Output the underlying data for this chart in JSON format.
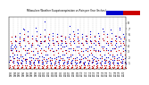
{
  "title": "Milwaukee Weather Evapotranspiration",
  "title2": "vs Rain per Year",
  "title3": "(Inches)",
  "background_color": "#ffffff",
  "grid_color": "#888888",
  "rain_color": "#0000cc",
  "et_color": "#cc0000",
  "ylim": [
    0,
    9
  ],
  "ytick_vals": [
    1,
    2,
    3,
    4,
    5,
    6,
    7,
    8
  ],
  "ytick_labels": [
    "1",
    "2",
    "3",
    "4",
    "5",
    "6",
    "7",
    "8"
  ],
  "num_years": 28,
  "start_year": 1993,
  "months_per_year": 12,
  "rain_monthly": [
    1.2,
    1.5,
    2.1,
    3.2,
    3.5,
    3.8,
    3.2,
    4.1,
    3.5,
    2.8,
    2.2,
    1.8,
    1.0,
    1.3,
    2.5,
    3.8,
    4.2,
    5.5,
    4.8,
    3.9,
    3.2,
    2.5,
    1.9,
    1.2,
    0.9,
    1.1,
    1.8,
    3.0,
    4.5,
    6.2,
    5.5,
    4.8,
    3.8,
    2.2,
    1.5,
    0.8,
    1.1,
    1.4,
    2.2,
    3.5,
    5.0,
    7.0,
    6.8,
    5.2,
    4.0,
    2.5,
    1.6,
    1.0,
    1.3,
    1.6,
    2.8,
    3.2,
    4.8,
    6.5,
    5.8,
    4.5,
    3.5,
    2.0,
    1.4,
    0.9,
    0.8,
    1.2,
    2.0,
    3.8,
    4.2,
    5.8,
    5.2,
    4.2,
    3.0,
    1.8,
    1.2,
    0.7,
    1.0,
    1.5,
    2.5,
    3.5,
    5.2,
    7.2,
    6.5,
    5.0,
    4.2,
    2.8,
    1.8,
    1.1,
    1.2,
    1.4,
    2.2,
    4.0,
    4.5,
    6.0,
    5.5,
    4.8,
    3.5,
    2.2,
    1.5,
    0.9,
    0.9,
    1.2,
    1.9,
    3.2,
    4.8,
    6.8,
    8.2,
    5.5,
    3.8,
    2.5,
    1.6,
    1.0,
    1.1,
    1.3,
    2.5,
    3.8,
    4.5,
    5.5,
    5.0,
    4.2,
    3.2,
    2.0,
    1.3,
    0.8,
    0.8,
    1.0,
    1.8,
    3.5,
    5.0,
    6.2,
    5.8,
    4.5,
    3.0,
    1.8,
    1.1,
    0.7,
    1.0,
    1.4,
    2.0,
    3.2,
    4.8,
    6.0,
    5.5,
    4.2,
    3.5,
    2.2,
    1.5,
    0.9,
    1.2,
    1.5,
    2.2,
    3.5,
    4.2,
    5.8,
    5.0,
    4.5,
    3.8,
    2.5,
    1.8,
    1.1,
    0.9,
    1.2,
    2.5,
    3.8,
    4.5,
    5.5,
    5.2,
    4.0,
    3.2,
    2.0,
    1.2,
    0.8,
    1.0,
    1.3,
    2.0,
    3.5,
    5.5,
    7.5,
    6.0,
    4.8,
    3.5,
    2.2,
    1.4,
    0.9,
    1.1,
    1.5,
    2.5,
    3.2,
    4.8,
    6.5,
    5.8,
    4.5,
    3.2,
    1.8,
    1.2,
    0.8,
    0.8,
    1.0,
    2.0,
    3.8,
    5.2,
    6.8,
    6.2,
    5.0,
    3.8,
    2.5,
    1.6,
    1.0,
    1.2,
    1.4,
    2.2,
    3.5,
    4.5,
    6.0,
    5.5,
    4.2,
    3.0,
    1.8,
    1.1,
    0.7,
    0.9,
    1.2,
    2.0,
    3.2,
    4.8,
    5.8,
    5.2,
    4.5,
    3.5,
    2.2,
    1.5,
    0.9,
    1.0,
    1.3,
    2.5,
    3.8,
    5.0,
    6.5,
    6.0,
    4.8,
    3.8,
    2.5,
    1.8,
    1.1,
    1.2,
    1.5,
    2.2,
    3.5,
    4.5,
    5.5,
    5.0,
    4.2,
    3.2,
    2.0,
    1.3,
    0.8,
    0.8,
    1.1,
    1.8,
    3.2,
    4.8,
    6.2,
    5.8,
    4.5,
    3.0,
    1.8,
    1.1,
    0.7,
    1.0,
    1.4,
    2.2,
    3.8,
    5.2,
    7.0,
    6.5,
    5.0,
    3.8,
    2.5,
    1.6,
    1.0,
    1.1,
    1.3,
    2.0,
    3.5,
    4.5,
    6.0,
    5.5,
    4.2,
    3.2,
    2.0,
    1.4,
    0.9,
    0.9,
    1.2,
    2.5,
    3.2,
    4.8,
    6.8,
    6.2,
    4.8,
    3.5,
    2.2,
    1.5,
    0.9,
    1.2,
    1.5,
    2.2,
    3.5,
    4.2,
    5.8,
    5.2,
    4.5,
    3.8,
    2.5,
    1.8,
    1.1,
    0.8,
    1.0,
    2.0,
    3.8,
    5.5,
    7.2,
    6.8,
    5.2,
    4.0,
    2.5,
    1.6,
    1.0,
    1.0,
    1.3,
    2.2,
    3.5,
    4.8,
    6.0,
    5.5,
    4.2,
    3.2,
    1.8,
    1.2,
    0.8
  ],
  "et_monthly": [
    0.1,
    0.2,
    0.5,
    1.5,
    3.2,
    4.8,
    5.5,
    4.5,
    2.8,
    1.2,
    0.4,
    0.1,
    0.1,
    0.2,
    0.6,
    1.8,
    3.5,
    5.0,
    5.8,
    4.8,
    3.0,
    1.5,
    0.5,
    0.1,
    0.1,
    0.2,
    0.5,
    1.5,
    3.0,
    4.5,
    5.2,
    4.2,
    2.5,
    1.0,
    0.3,
    0.1,
    0.1,
    0.2,
    0.6,
    1.8,
    3.5,
    5.2,
    6.0,
    5.0,
    3.2,
    1.5,
    0.5,
    0.1,
    0.1,
    0.2,
    0.5,
    1.6,
    3.2,
    4.8,
    5.5,
    4.5,
    2.8,
    1.2,
    0.4,
    0.1,
    0.1,
    0.2,
    0.5,
    1.5,
    3.0,
    4.5,
    5.2,
    4.2,
    2.5,
    1.0,
    0.3,
    0.1,
    0.1,
    0.2,
    0.6,
    1.8,
    3.5,
    5.0,
    5.8,
    4.8,
    3.0,
    1.5,
    0.5,
    0.1,
    0.1,
    0.2,
    0.5,
    1.5,
    3.2,
    4.8,
    5.5,
    4.5,
    2.8,
    1.2,
    0.4,
    0.1,
    0.1,
    0.2,
    0.5,
    1.6,
    3.2,
    5.0,
    5.8,
    4.8,
    3.0,
    1.3,
    0.4,
    0.1,
    0.1,
    0.2,
    0.6,
    1.8,
    3.5,
    5.2,
    6.0,
    5.0,
    3.2,
    1.5,
    0.5,
    0.1,
    0.1,
    0.2,
    0.5,
    1.5,
    3.0,
    4.5,
    5.2,
    4.2,
    2.5,
    1.0,
    0.3,
    0.1,
    0.1,
    0.2,
    0.5,
    1.6,
    3.2,
    4.8,
    5.5,
    4.5,
    2.8,
    1.2,
    0.4,
    0.1,
    0.1,
    0.2,
    0.6,
    1.8,
    3.5,
    5.0,
    5.8,
    4.8,
    3.0,
    1.5,
    0.5,
    0.1,
    0.1,
    0.2,
    0.5,
    1.5,
    3.2,
    4.8,
    5.5,
    4.5,
    2.8,
    1.2,
    0.4,
    0.1,
    0.1,
    0.2,
    0.5,
    1.6,
    3.0,
    4.5,
    5.2,
    4.2,
    2.5,
    1.0,
    0.3,
    0.1,
    0.1,
    0.2,
    0.6,
    1.8,
    3.5,
    5.2,
    6.0,
    5.0,
    3.2,
    1.5,
    0.5,
    0.1,
    0.1,
    0.2,
    0.5,
    1.5,
    3.2,
    4.8,
    5.5,
    4.5,
    2.8,
    1.2,
    0.4,
    0.1,
    0.1,
    0.2,
    0.5,
    1.6,
    3.0,
    4.5,
    5.2,
    4.2,
    2.5,
    1.0,
    0.3,
    0.1,
    0.1,
    0.2,
    0.6,
    1.8,
    3.5,
    5.0,
    5.8,
    4.8,
    3.0,
    1.5,
    0.5,
    0.1,
    0.1,
    0.2,
    0.5,
    1.5,
    3.2,
    4.8,
    5.5,
    4.5,
    2.8,
    1.2,
    0.4,
    0.1,
    0.1,
    0.2,
    0.5,
    1.6,
    3.2,
    5.0,
    5.8,
    4.8,
    3.0,
    1.3,
    0.4,
    0.1,
    0.1,
    0.2,
    0.5,
    1.5,
    3.0,
    4.5,
    5.2,
    4.2,
    2.5,
    1.0,
    0.3,
    0.1,
    0.1,
    0.2,
    0.6,
    1.8,
    3.5,
    5.2,
    6.0,
    5.0,
    3.2,
    1.5,
    0.5,
    0.1,
    0.1,
    0.2,
    0.5,
    1.5,
    3.2,
    4.8,
    5.5,
    4.5,
    2.8,
    1.2,
    0.4,
    0.1,
    0.1,
    0.2,
    0.5,
    1.6,
    3.0,
    4.5,
    5.2,
    4.2,
    2.5,
    1.0,
    0.3,
    0.1,
    0.1,
    0.2,
    0.6,
    1.8,
    3.5,
    5.0,
    5.8,
    4.8,
    3.0,
    1.5,
    0.5,
    0.1,
    0.1,
    0.2,
    0.5,
    1.5,
    3.2,
    4.8,
    5.5,
    4.5,
    2.8,
    1.2,
    0.4,
    0.1,
    0.1,
    0.2,
    0.5,
    1.6,
    3.0,
    4.5,
    5.2,
    4.2,
    2.5,
    1.0,
    0.3,
    0.1
  ],
  "xtick_positions": [
    6,
    18,
    30,
    42,
    54,
    66,
    78,
    90,
    102,
    114,
    126,
    138,
    150,
    162,
    174,
    186,
    198,
    210,
    222,
    234,
    246,
    258,
    270,
    282,
    294,
    306,
    318,
    330
  ],
  "xtick_labels": [
    "1993",
    "1994",
    "1995",
    "1996",
    "1997",
    "1998",
    "1999",
    "2000",
    "2001",
    "2002",
    "2003",
    "2004",
    "2005",
    "2006",
    "2007",
    "2008",
    "2009",
    "2010",
    "2011",
    "2012",
    "2013",
    "2014",
    "2015",
    "2016",
    "2017",
    "2018",
    "2019",
    "2020"
  ],
  "vgrid_positions": [
    0,
    12,
    24,
    36,
    48,
    60,
    72,
    84,
    96,
    108,
    120,
    132,
    144,
    156,
    168,
    180,
    192,
    204,
    216,
    228,
    240,
    252,
    264,
    276,
    288,
    300,
    312,
    324,
    336
  ]
}
